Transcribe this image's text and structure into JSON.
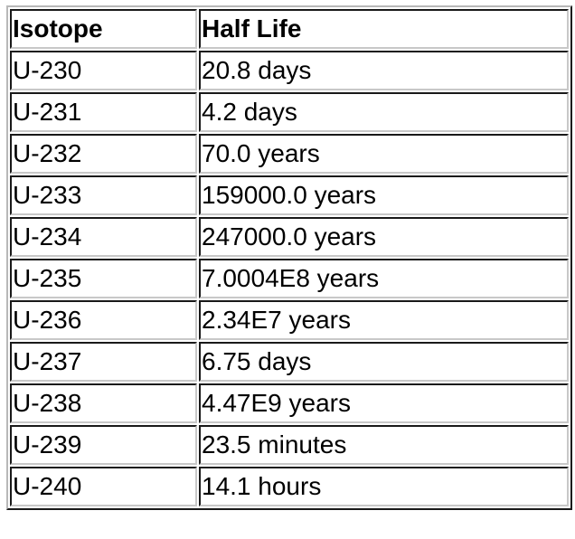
{
  "table": {
    "headers": [
      "Isotope",
      "Half Life"
    ],
    "rows": [
      [
        "U-230",
        "20.8 days"
      ],
      [
        "U-231",
        "4.2 days"
      ],
      [
        "U-232",
        "70.0 years"
      ],
      [
        "U-233",
        "159000.0 years"
      ],
      [
        "U-234",
        "247000.0 years"
      ],
      [
        "U-235",
        "7.0004E8 years"
      ],
      [
        "U-236",
        "2.34E7 years"
      ],
      [
        "U-237",
        "6.75 days"
      ],
      [
        "U-238",
        "4.47E9 years"
      ],
      [
        "U-239",
        "23.5 minutes"
      ],
      [
        "U-240",
        "14.1 hours"
      ]
    ]
  }
}
